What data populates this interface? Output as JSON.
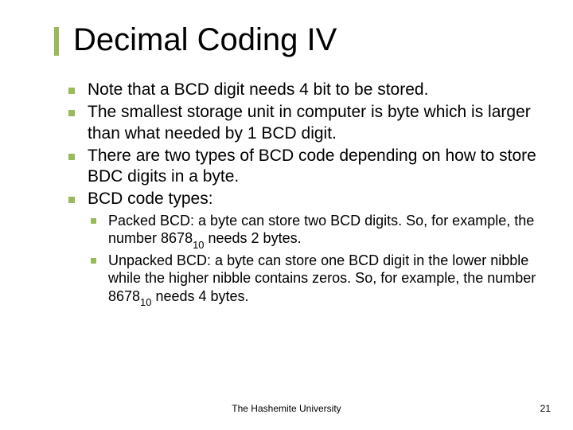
{
  "colors": {
    "accent": "#9ab95a",
    "text": "#000000",
    "background": "#ffffff"
  },
  "typography": {
    "title_fontsize": 40,
    "bullet_fontsize": 21,
    "sub_bullet_fontsize": 18,
    "footer_fontsize": 12,
    "font_family": "Verdana"
  },
  "title": "Decimal Coding IV",
  "bullets": [
    "Note that a BCD digit needs 4 bit to be stored.",
    "The smallest storage unit in computer is byte which is larger than what needed by 1 BCD digit.",
    "There are two types of BCD code depending on how to store BDC digits in a byte.",
    "BCD code types:"
  ],
  "sub_bullets": [
    {
      "prefix": "Packed BCD: a byte can store two BCD digits. So, for example, the number 8678",
      "subscript": "10",
      "suffix": " needs 2 bytes."
    },
    {
      "prefix": "Unpacked BCD: a byte can store one BCD digit in the lower nibble while the higher nibble contains zeros. So, for example, the number 8678",
      "subscript": "10",
      "suffix": " needs 4 bytes."
    }
  ],
  "footer": {
    "center": "The Hashemite University",
    "page_number": "21"
  }
}
